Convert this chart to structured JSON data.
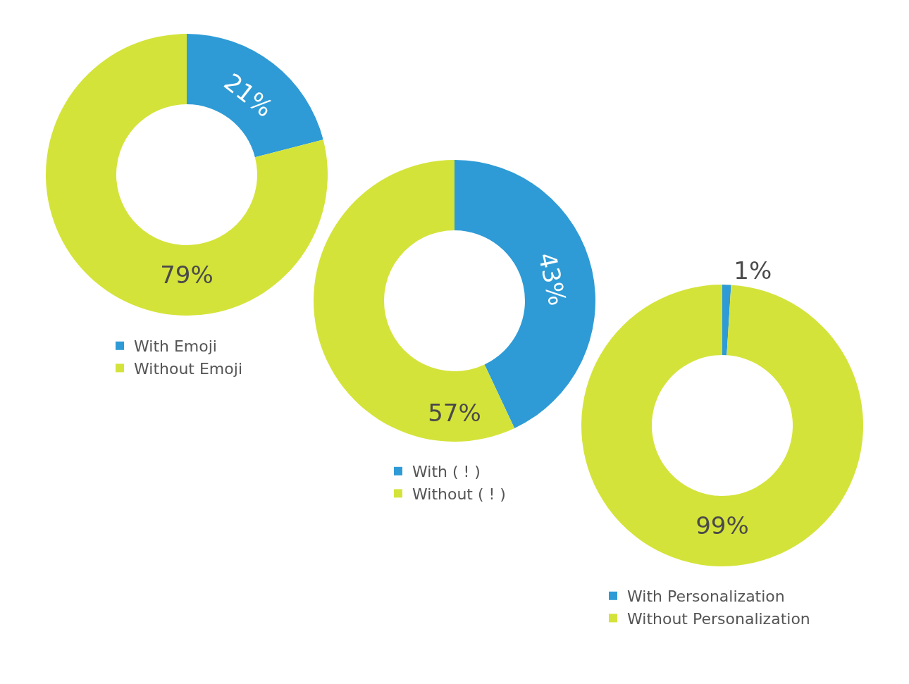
{
  "chart_data": [
    {
      "type": "donut",
      "categories": [
        "With Emoji",
        "Without Emoji"
      ],
      "values": [
        21,
        79
      ],
      "value_labels": [
        "21%",
        "79%"
      ],
      "colors": [
        "#2e9bd6",
        "#d4e33a"
      ],
      "legend": "bottom"
    },
    {
      "type": "donut",
      "categories": [
        "With ( ! )",
        "Without ( ! )"
      ],
      "values": [
        43,
        57
      ],
      "value_labels": [
        "43%",
        "57%"
      ],
      "colors": [
        "#2e9bd6",
        "#d4e33a"
      ],
      "legend": "bottom"
    },
    {
      "type": "donut",
      "categories": [
        "With Personalization",
        "Without Personalization"
      ],
      "values": [
        1,
        99
      ],
      "value_labels": [
        "1%",
        "99%"
      ],
      "colors": [
        "#2e9bd6",
        "#d4e33a"
      ],
      "legend": "bottom"
    }
  ]
}
